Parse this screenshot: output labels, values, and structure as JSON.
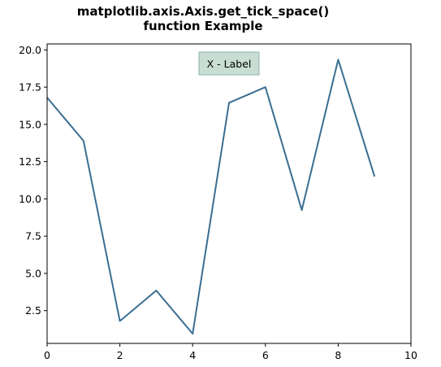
{
  "chart_data": {
    "type": "line",
    "title_line1": "matplotlib.axis.Axis.get_tick_space()",
    "title_line2": "function Example",
    "annotation": "X - Label",
    "x": [
      0,
      1,
      2,
      3,
      4,
      5,
      6,
      7,
      8,
      9
    ],
    "y": [
      16.8,
      13.9,
      1.8,
      3.85,
      0.95,
      16.45,
      17.5,
      9.25,
      19.35,
      11.5
    ],
    "xlim": [
      0,
      10
    ],
    "ylim": [
      0.3,
      20.4
    ],
    "xticks": [
      0,
      2,
      4,
      6,
      8,
      10
    ],
    "xtick_labels": [
      "0",
      "2",
      "4",
      "6",
      "8",
      "10"
    ],
    "yticks": [
      2.5,
      5.0,
      7.5,
      10.0,
      12.5,
      15.0,
      17.5,
      20.0
    ],
    "ytick_labels": [
      "2.5",
      "5.0",
      "7.5",
      "10.0",
      "12.5",
      "15.0",
      "17.5",
      "20.0"
    ],
    "line_color": "#3a6e92",
    "annotation_bg": "#c8ddd3",
    "annotation_border": "#8fb5a3",
    "grid": false
  }
}
